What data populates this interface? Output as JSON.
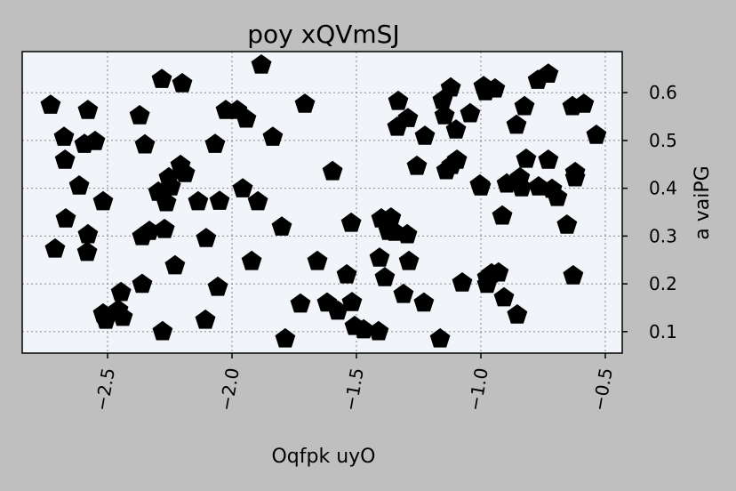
{
  "chart_data": {
    "type": "scatter",
    "title": "poy xQVmSJ",
    "xlabel": "Oqfpk uyO",
    "ylabel": "a vaiPG",
    "color": "#000000",
    "marker": "pentagon",
    "grid": true,
    "yaxis_side": "right",
    "xlim": [
      -2.843,
      -0.432
    ],
    "ylim": [
      0.055,
      0.686
    ],
    "xticks": [
      {
        "value": -2.5,
        "label": "−2.5"
      },
      {
        "value": -2.0,
        "label": "−2.0"
      },
      {
        "value": -1.5,
        "label": "−1.5"
      },
      {
        "value": -1.0,
        "label": "−1.0"
      },
      {
        "value": -0.5,
        "label": "−0.5"
      }
    ],
    "yticks": [
      0.1,
      0.2,
      0.3,
      0.4,
      0.5,
      0.6
    ],
    "x": [
      -2.729,
      -2.675,
      -2.671,
      -2.614,
      -2.668,
      -2.711,
      -2.579,
      -2.582,
      -2.579,
      -2.593,
      -2.55,
      -2.518,
      -2.518,
      -2.507,
      -2.446,
      -2.457,
      -2.439,
      -2.371,
      -2.35,
      -2.361,
      -2.332,
      -2.361,
      -2.271,
      -2.282,
      -2.279,
      -2.296,
      -2.264,
      -2.254,
      -2.246,
      -2.229,
      -2.207,
      -2.2,
      -2.189,
      -2.136,
      -2.104,
      -2.107,
      -2.068,
      -2.057,
      -2.05,
      -2.025,
      -1.979,
      -1.957,
      -1.943,
      -1.896,
      -1.921,
      -1.882,
      -1.836,
      -1.8,
      -1.786,
      -1.707,
      -1.725,
      -1.657,
      -1.618,
      -1.596,
      -1.575,
      -1.539,
      -1.518,
      -1.521,
      -1.507,
      -1.471,
      -1.411,
      -1.407,
      -1.4,
      -1.386,
      -1.371,
      -1.361,
      -1.336,
      -1.346,
      -1.311,
      -1.332,
      -1.296,
      -1.293,
      -1.289,
      -1.257,
      -1.229,
      -1.225,
      -1.164,
      -1.154,
      -1.146,
      -1.139,
      -1.121,
      -1.118,
      -1.1,
      -1.096,
      -1.075,
      -1.043,
      -1.0,
      -0.989,
      -0.982,
      -0.975,
      -0.975,
      -0.943,
      -0.929,
      -0.957,
      -0.914,
      -0.907,
      -0.896,
      -0.854,
      -0.857,
      -0.825,
      -0.818,
      -0.843,
      -0.836,
      -0.771,
      -0.768,
      -0.729,
      -0.729,
      -0.714,
      -0.693,
      -0.654,
      -0.632,
      -0.629,
      -0.586,
      -0.621,
      -0.621,
      -0.536,
      -1.004
    ],
    "y": [
      0.574,
      0.507,
      0.459,
      0.405,
      0.336,
      0.273,
      0.303,
      0.266,
      0.563,
      0.492,
      0.498,
      0.372,
      0.137,
      0.124,
      0.182,
      0.145,
      0.13,
      0.552,
      0.491,
      0.299,
      0.31,
      0.199,
      0.314,
      0.628,
      0.1,
      0.392,
      0.37,
      0.422,
      0.403,
      0.238,
      0.448,
      0.619,
      0.431,
      0.372,
      0.295,
      0.124,
      0.492,
      0.193,
      0.373,
      0.563,
      0.563,
      0.399,
      0.545,
      0.372,
      0.247,
      0.658,
      0.507,
      0.319,
      0.085,
      0.576,
      0.158,
      0.247,
      0.16,
      0.435,
      0.143,
      0.219,
      0.161,
      0.327,
      0.111,
      0.104,
      0.1,
      0.254,
      0.336,
      0.213,
      0.31,
      0.338,
      0.528,
      0.308,
      0.178,
      0.582,
      0.303,
      0.546,
      0.247,
      0.446,
      0.16,
      0.509,
      0.085,
      0.584,
      0.552,
      0.437,
      0.61,
      0.448,
      0.522,
      0.459,
      0.202,
      0.556,
      0.403,
      0.613,
      0.602,
      0.199,
      0.213,
      0.608,
      0.223,
      0.221,
      0.342,
      0.171,
      0.409,
      0.135,
      0.532,
      0.571,
      0.461,
      0.422,
      0.401,
      0.626,
      0.403,
      0.639,
      0.459,
      0.398,
      0.381,
      0.323,
      0.571,
      0.217,
      0.576,
      0.433,
      0.422,
      0.511,
      0.407
    ]
  }
}
